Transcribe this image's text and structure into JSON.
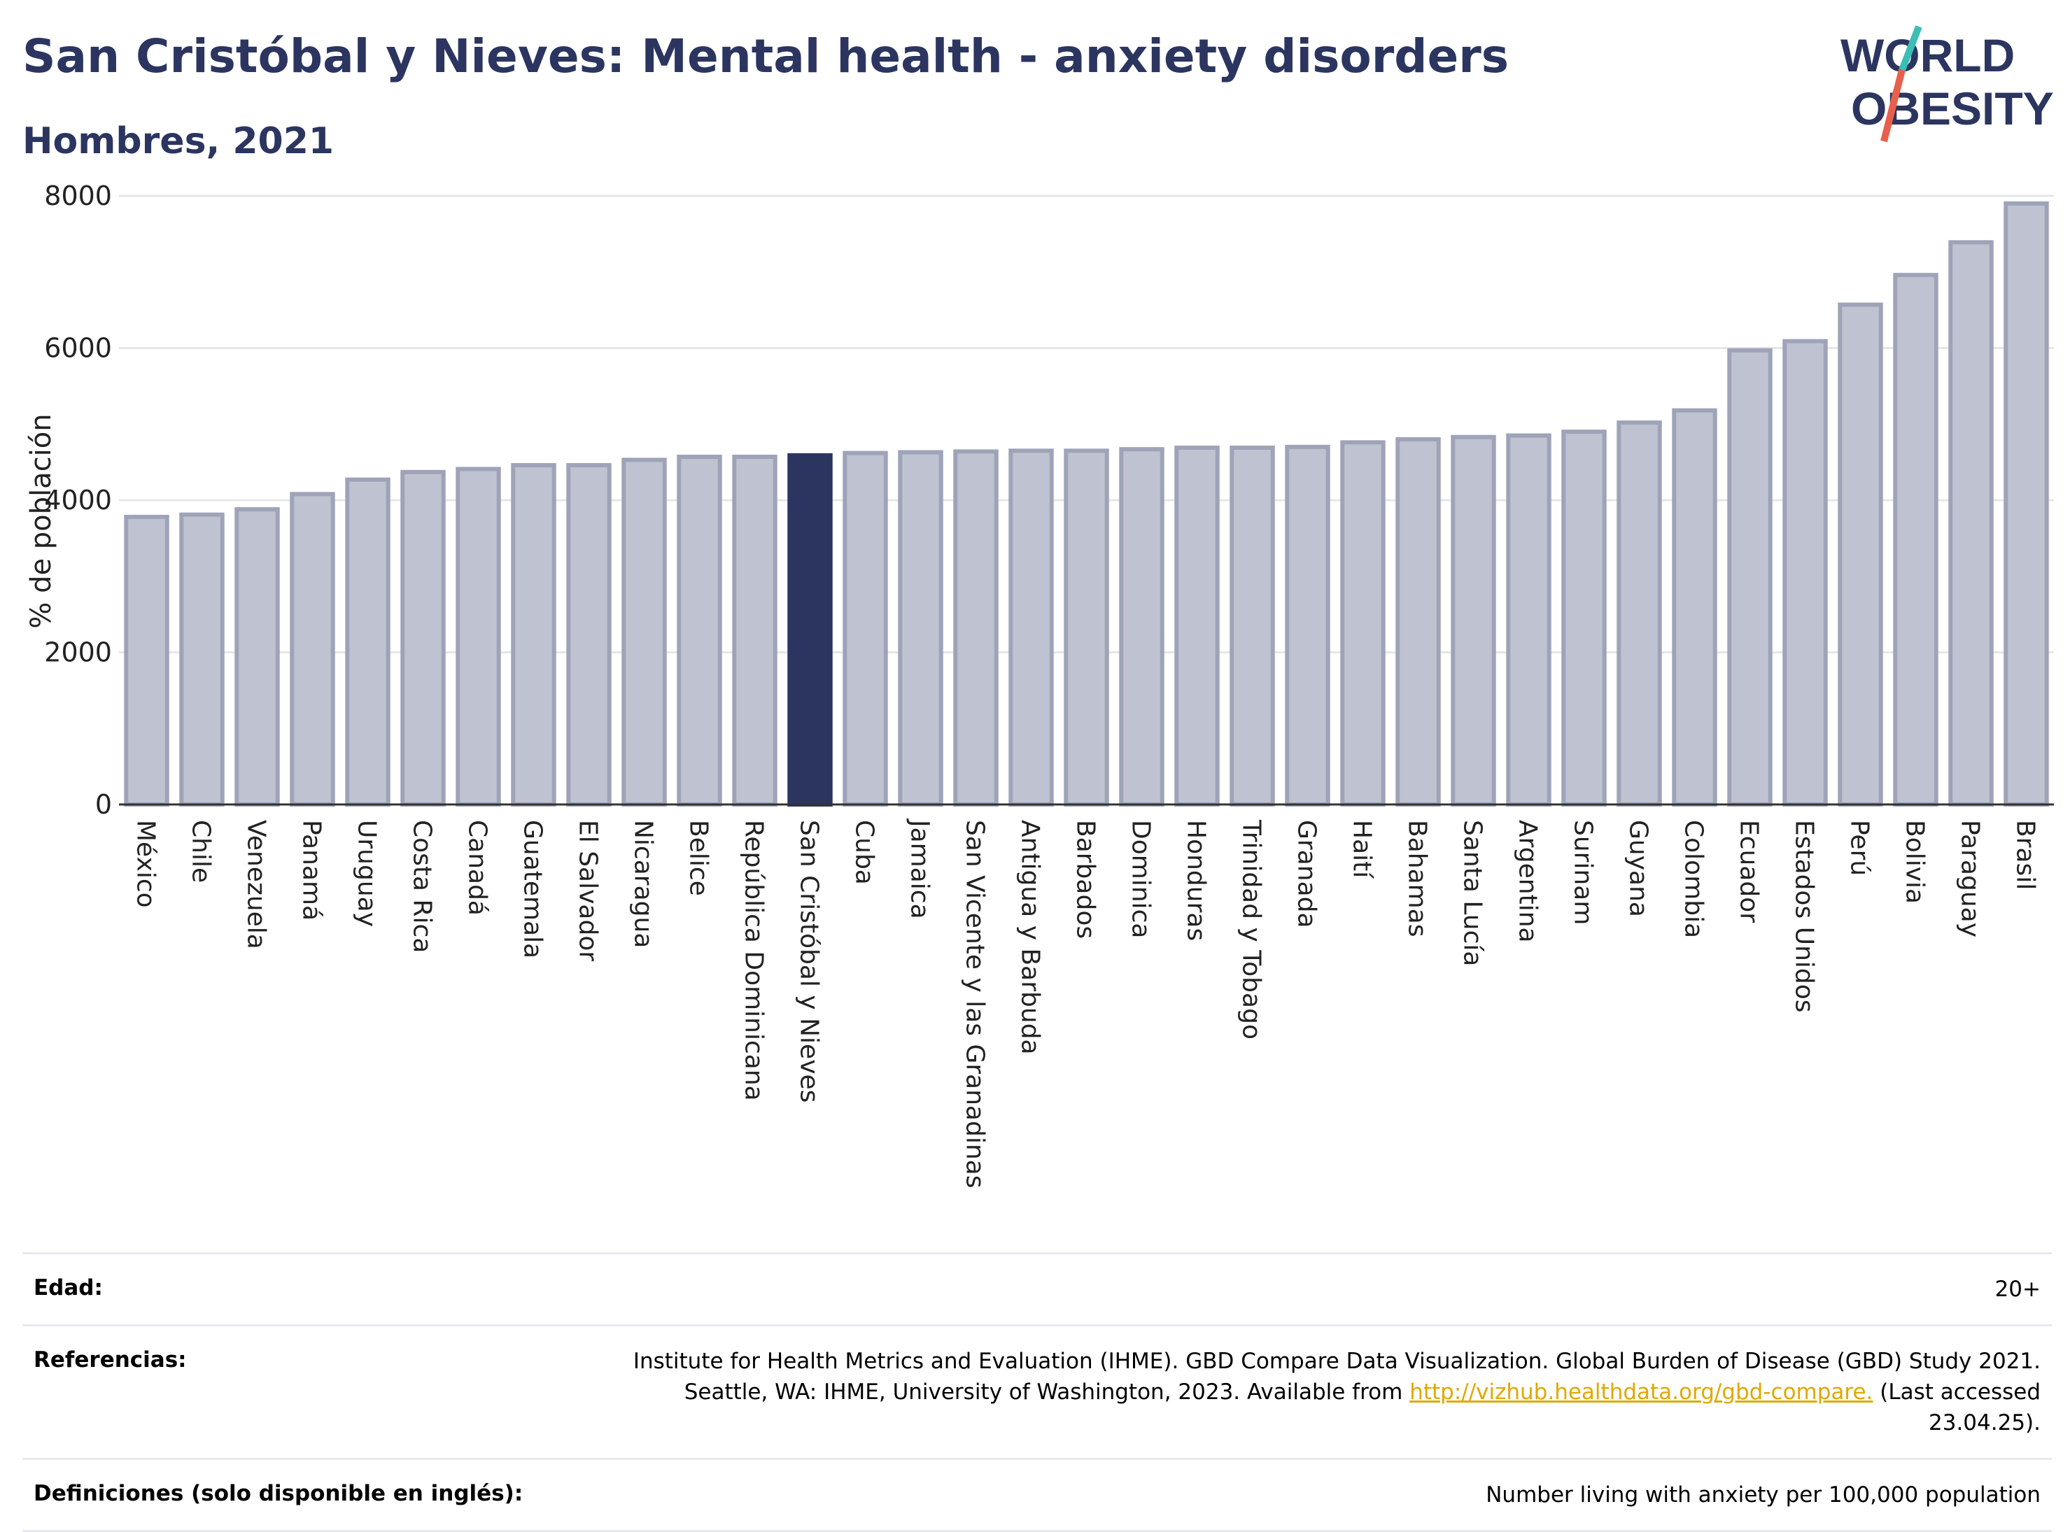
{
  "header": {
    "title": "San Cristóbal y Nieves: Mental health - anxiety disorders",
    "subtitle": "Hombres, 2021"
  },
  "logo": {
    "line1": "WORLD",
    "line2": "OBESITY",
    "accent_teal": "#3bbfb5",
    "accent_red": "#e8604c",
    "text_color": "#2b3560"
  },
  "chart_data": {
    "type": "bar",
    "ylabel": "% de población",
    "ylim": [
      0,
      8000
    ],
    "yticks": [
      0,
      2000,
      4000,
      6000,
      8000
    ],
    "grid": true,
    "highlight": "San Cristóbal y Nieves",
    "colors": {
      "bar": "#bfc2d0",
      "bar_edge": "#9ea3b8",
      "highlight": "#2b3560"
    },
    "categories": [
      "México",
      "Chile",
      "Venezuela",
      "Panamá",
      "Uruguay",
      "Costa Rica",
      "Canadá",
      "Guatemala",
      "El Salvador",
      "Nicaragua",
      "Belice",
      "República Dominicana",
      "San Cristóbal y Nieves",
      "Cuba",
      "Jamaica",
      "San Vicente y las Granadinas",
      "Antigua y Barbuda",
      "Barbados",
      "Dominica",
      "Honduras",
      "Trinidad y Tobago",
      "Granada",
      "Haití",
      "Bahamas",
      "Santa Lucía",
      "Argentina",
      "Surinam",
      "Guyana",
      "Colombia",
      "Ecuador",
      "Estados Unidos",
      "Perú",
      "Bolivia",
      "Paraguay",
      "Brasil"
    ],
    "values": [
      3780,
      3810,
      3880,
      4080,
      4270,
      4370,
      4410,
      4460,
      4460,
      4530,
      4570,
      4570,
      4590,
      4620,
      4630,
      4640,
      4650,
      4650,
      4670,
      4690,
      4690,
      4700,
      4760,
      4800,
      4830,
      4850,
      4900,
      5020,
      5180,
      5970,
      6090,
      6570,
      6960,
      7390,
      7900
    ]
  },
  "info": {
    "age_label": "Edad:",
    "age_value": "20+",
    "ref_label": "Referencias:",
    "ref_text_1": "Institute for Health Metrics and Evaluation (IHME). GBD Compare Data Visualization. Global Burden of Disease (GBD) Study 2021. Seattle, WA: IHME, University of Washington, 2023. Available from",
    "ref_link": "http://vizhub.healthdata.org/gbd-compare.",
    "ref_text_2": "(Last accessed 23.04.25).",
    "def_label": "Definiciones (solo disponible en inglés):",
    "def_value": "Number living with anxiety per 100,000 population"
  }
}
